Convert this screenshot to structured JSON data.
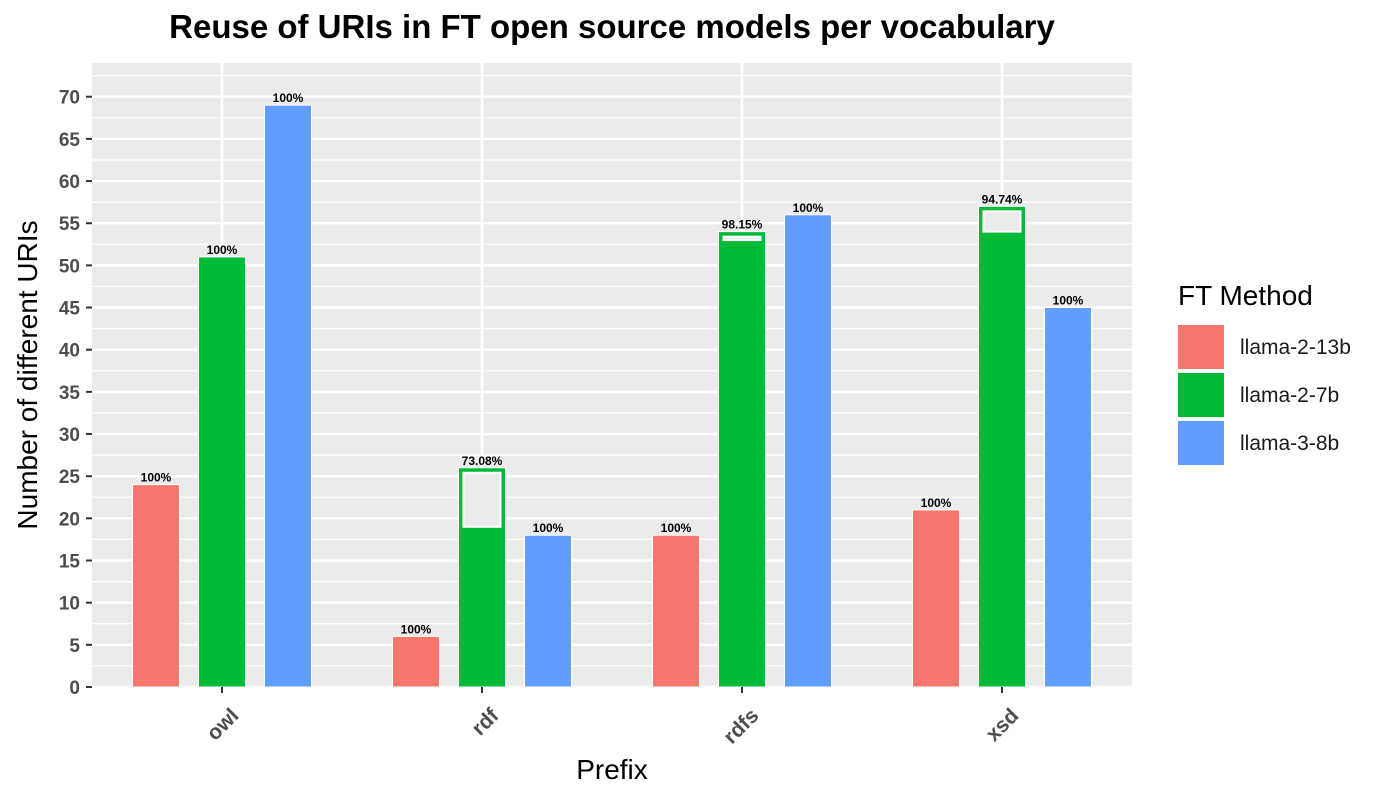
{
  "chart_data": {
    "type": "bar",
    "title": "Reuse of URIs in FT open source models per vocabulary",
    "xlabel": "Prefix",
    "ylabel": "Number of different URIs",
    "categories": [
      "owl",
      "rdf",
      "rdfs",
      "xsd"
    ],
    "ylim": [
      0,
      74
    ],
    "yticks": [
      0,
      5,
      10,
      15,
      20,
      25,
      30,
      35,
      40,
      45,
      50,
      55,
      60,
      65,
      70
    ],
    "grid": true,
    "legend": {
      "title": "FT Method",
      "position": "right"
    },
    "series": [
      {
        "name": "llama-2-13b",
        "color": "#F8766D",
        "values": [
          24,
          6,
          18,
          21
        ],
        "labels": [
          "100%",
          "100%",
          "100%",
          "100%"
        ]
      },
      {
        "name": "llama-2-7b",
        "color": "#00BA38",
        "values": [
          51,
          26,
          54,
          57
        ],
        "labels": [
          "100%",
          "73.08%",
          "98.15%",
          "94.74%"
        ]
      },
      {
        "name": "llama-3-8b",
        "color": "#619CFF",
        "values": [
          69,
          18,
          56,
          45
        ],
        "labels": [
          "100%",
          "100%",
          "100%",
          "100%"
        ]
      }
    ]
  }
}
